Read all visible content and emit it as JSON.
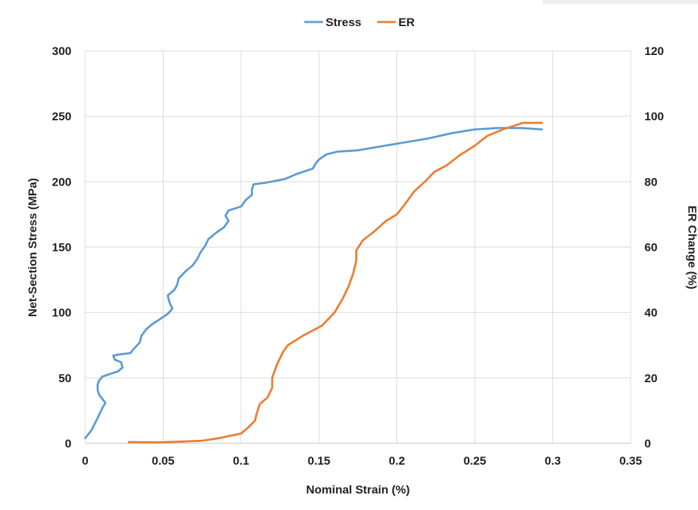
{
  "chart_data": {
    "type": "line",
    "title": "",
    "xlabel": "Nominal Strain (%)",
    "ylabel": "Net-Section Stress (MPa)",
    "y2label": "ER Change (%)",
    "xlim": [
      0,
      0.35
    ],
    "ylim": [
      0,
      300
    ],
    "y2lim": [
      0,
      120
    ],
    "x_ticks": [
      "0",
      "0.05",
      "0.1",
      "0.15",
      "0.2",
      "0.25",
      "0.3",
      "0.35"
    ],
    "y_ticks": [
      "0",
      "50",
      "100",
      "150",
      "200",
      "250",
      "300"
    ],
    "y2_ticks": [
      "0",
      "20",
      "40",
      "60",
      "80",
      "100",
      "120"
    ],
    "grid": true,
    "legend_position": "top-center",
    "series": [
      {
        "name": "Stress",
        "axis": "left",
        "color": "#5B9BD5",
        "points": [
          [
            0,
            4
          ],
          [
            0.004,
            10
          ],
          [
            0.007,
            17
          ],
          [
            0.009,
            22
          ],
          [
            0.011,
            27
          ],
          [
            0.013,
            31
          ],
          [
            0.011,
            34
          ],
          [
            0.009,
            37
          ],
          [
            0.008,
            41
          ],
          [
            0.008,
            45
          ],
          [
            0.009,
            48
          ],
          [
            0.011,
            51
          ],
          [
            0.016,
            53
          ],
          [
            0.021,
            55
          ],
          [
            0.024,
            58
          ],
          [
            0.023,
            62
          ],
          [
            0.019,
            64
          ],
          [
            0.018,
            67
          ],
          [
            0.022,
            68
          ],
          [
            0.029,
            69
          ],
          [
            0.031,
            72
          ],
          [
            0.035,
            77
          ],
          [
            0.036,
            82
          ],
          [
            0.039,
            87
          ],
          [
            0.043,
            91
          ],
          [
            0.048,
            95
          ],
          [
            0.053,
            99
          ],
          [
            0.056,
            103
          ],
          [
            0.054,
            108
          ],
          [
            0.053,
            113
          ],
          [
            0.057,
            117
          ],
          [
            0.059,
            121
          ],
          [
            0.06,
            126
          ],
          [
            0.064,
            131
          ],
          [
            0.069,
            136
          ],
          [
            0.072,
            141
          ],
          [
            0.074,
            146
          ],
          [
            0.077,
            151
          ],
          [
            0.079,
            156
          ],
          [
            0.084,
            161
          ],
          [
            0.089,
            165
          ],
          [
            0.092,
            170
          ],
          [
            0.09,
            174
          ],
          [
            0.092,
            178
          ],
          [
            0.1,
            181
          ],
          [
            0.103,
            186
          ],
          [
            0.107,
            190
          ],
          [
            0.107,
            194
          ],
          [
            0.108,
            198
          ],
          [
            0.115,
            199
          ],
          [
            0.128,
            202
          ],
          [
            0.136,
            206
          ],
          [
            0.146,
            210
          ],
          [
            0.148,
            214
          ],
          [
            0.15,
            217
          ],
          [
            0.155,
            221
          ],
          [
            0.162,
            223
          ],
          [
            0.175,
            224
          ],
          [
            0.19,
            227
          ],
          [
            0.205,
            230
          ],
          [
            0.22,
            233
          ],
          [
            0.235,
            237
          ],
          [
            0.25,
            240
          ],
          [
            0.265,
            241
          ],
          [
            0.28,
            241
          ],
          [
            0.293,
            240
          ]
        ]
      },
      {
        "name": "ER",
        "axis": "right",
        "color": "#ED7D31",
        "points": [
          [
            0.028,
            0.4
          ],
          [
            0.045,
            0.3
          ],
          [
            0.06,
            0.5
          ],
          [
            0.075,
            0.8
          ],
          [
            0.085,
            1.5
          ],
          [
            0.095,
            2.5
          ],
          [
            0.1,
            3
          ],
          [
            0.105,
            5
          ],
          [
            0.109,
            7
          ],
          [
            0.11,
            9
          ],
          [
            0.112,
            12
          ],
          [
            0.117,
            14
          ],
          [
            0.12,
            17
          ],
          [
            0.12,
            20
          ],
          [
            0.123,
            24
          ],
          [
            0.127,
            28
          ],
          [
            0.13,
            30
          ],
          [
            0.14,
            33
          ],
          [
            0.152,
            36
          ],
          [
            0.16,
            40
          ],
          [
            0.165,
            44
          ],
          [
            0.169,
            48
          ],
          [
            0.172,
            52
          ],
          [
            0.174,
            56
          ],
          [
            0.174,
            59
          ],
          [
            0.178,
            62
          ],
          [
            0.186,
            65
          ],
          [
            0.193,
            68
          ],
          [
            0.2,
            70
          ],
          [
            0.205,
            73
          ],
          [
            0.211,
            77
          ],
          [
            0.218,
            80
          ],
          [
            0.224,
            83
          ],
          [
            0.232,
            85
          ],
          [
            0.24,
            88
          ],
          [
            0.25,
            91
          ],
          [
            0.258,
            94
          ],
          [
            0.268,
            96
          ],
          [
            0.281,
            98
          ],
          [
            0.293,
            98
          ]
        ]
      }
    ]
  }
}
